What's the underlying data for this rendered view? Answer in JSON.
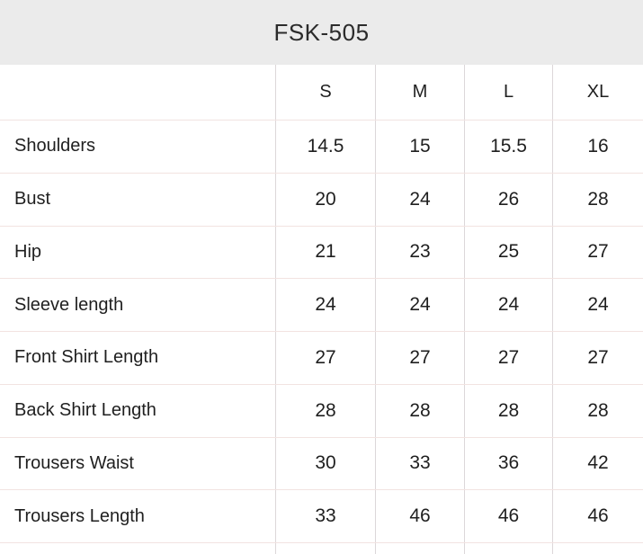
{
  "header": {
    "title": "FSK-505"
  },
  "table": {
    "sizes": [
      "S",
      "M",
      "L",
      "XL"
    ],
    "rows": [
      {
        "label": "Shoulders",
        "values": [
          "14.5",
          "15",
          "15.5",
          "16"
        ]
      },
      {
        "label": "Bust",
        "values": [
          "20",
          "24",
          "26",
          "28"
        ]
      },
      {
        "label": "Hip",
        "values": [
          "21",
          "23",
          "25",
          "27"
        ]
      },
      {
        "label": "Sleeve length",
        "values": [
          "24",
          "24",
          "24",
          "24"
        ]
      },
      {
        "label": "Front Shirt Length",
        "values": [
          "27",
          "27",
          "27",
          "27"
        ]
      },
      {
        "label": "Back Shirt Length",
        "values": [
          "28",
          "28",
          "28",
          "28"
        ]
      },
      {
        "label": "Trousers Waist",
        "values": [
          "30",
          "33",
          "36",
          "42"
        ]
      },
      {
        "label": "Trousers Length",
        "values": [
          "33",
          "46",
          "46",
          "46"
        ]
      }
    ]
  },
  "colors": {
    "header_bg": "#ebebeb",
    "row_border": "#f2e3e1",
    "col_border": "#dcd7d9",
    "text": "#1f1f1f",
    "title_text": "#2b2b2b"
  }
}
